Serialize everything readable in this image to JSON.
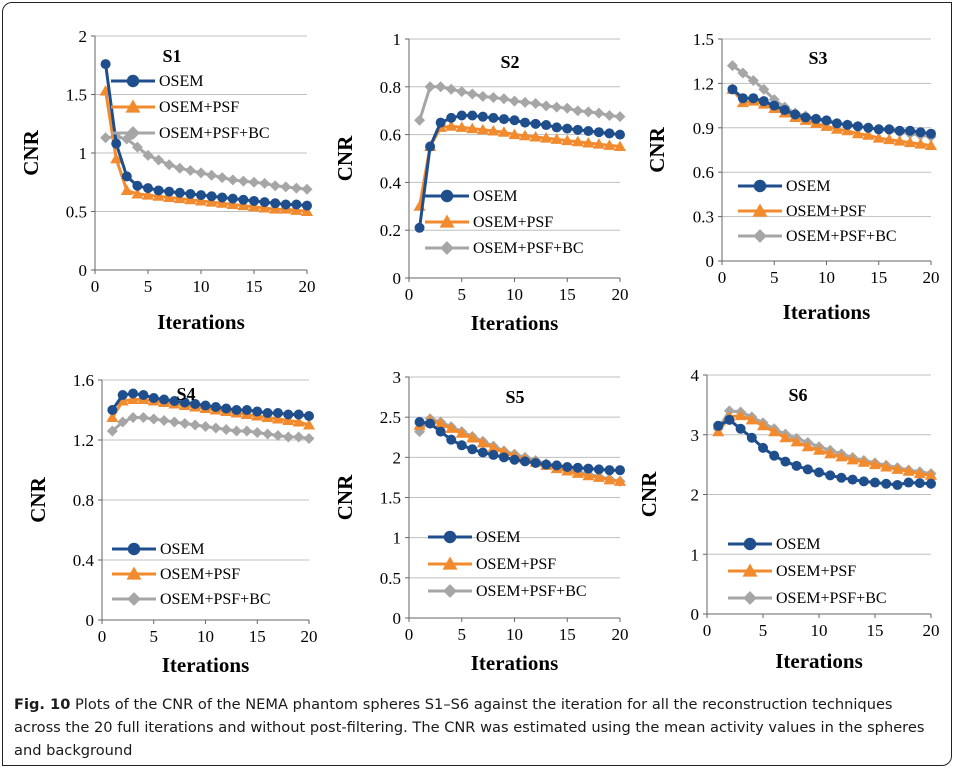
{
  "caption": {
    "label": "Fig. 10",
    "text": "Plots of the CNR of the NEMA phantom spheres S1–S6 against the iteration for all the reconstruction techniques across the 20 full iterations and without post-filtering. The CNR was estimated using the mean activity values in the spheres and background"
  },
  "colors": {
    "OSEM": "#1f4e8c",
    "OSEM+PSF": "#f28a2e",
    "OSEM+PSF+BC": "#a6a6a6"
  },
  "chart_data": [
    {
      "type": "line",
      "title": "S1",
      "xlabel": "Iterations",
      "ylabel": "CNR",
      "xlim": [
        0,
        20
      ],
      "ylim": [
        0,
        2
      ],
      "xticks": [
        0,
        5,
        10,
        15,
        20
      ],
      "yticks": [
        "0",
        "0.5",
        "1",
        "1.5",
        "2"
      ],
      "grid": true,
      "legend_position": "top-right",
      "x": [
        1,
        2,
        3,
        4,
        5,
        6,
        7,
        8,
        9,
        10,
        11,
        12,
        13,
        14,
        15,
        16,
        17,
        18,
        19,
        20
      ],
      "series": [
        {
          "name": "OSEM",
          "marker": "circle",
          "values": [
            1.76,
            1.08,
            0.8,
            0.72,
            0.7,
            0.68,
            0.67,
            0.66,
            0.65,
            0.64,
            0.63,
            0.62,
            0.61,
            0.6,
            0.59,
            0.58,
            0.57,
            0.56,
            0.56,
            0.55
          ]
        },
        {
          "name": "OSEM+PSF",
          "marker": "triangle",
          "values": [
            1.53,
            0.95,
            0.68,
            0.65,
            0.64,
            0.63,
            0.62,
            0.61,
            0.6,
            0.59,
            0.58,
            0.57,
            0.56,
            0.55,
            0.54,
            0.53,
            0.52,
            0.52,
            0.51,
            0.5
          ]
        },
        {
          "name": "OSEM+PSF+BC",
          "marker": "diamond",
          "values": [
            1.13,
            1.14,
            1.12,
            1.05,
            0.98,
            0.94,
            0.9,
            0.87,
            0.85,
            0.83,
            0.81,
            0.79,
            0.77,
            0.76,
            0.75,
            0.74,
            0.72,
            0.71,
            0.7,
            0.69
          ]
        }
      ]
    },
    {
      "type": "line",
      "title": "S2",
      "xlabel": "Iterations",
      "ylabel": "CNR",
      "xlim": [
        0,
        20
      ],
      "ylim": [
        0,
        1
      ],
      "xticks": [
        0,
        5,
        10,
        15,
        20
      ],
      "yticks": [
        "0",
        "0.2",
        "0.4",
        "0.6",
        "0.8",
        "1"
      ],
      "grid": true,
      "legend_position": "bottom-right",
      "x": [
        1,
        2,
        3,
        4,
        5,
        6,
        7,
        8,
        9,
        10,
        11,
        12,
        13,
        14,
        15,
        16,
        17,
        18,
        19,
        20
      ],
      "series": [
        {
          "name": "OSEM",
          "marker": "circle",
          "values": [
            0.21,
            0.55,
            0.65,
            0.67,
            0.68,
            0.68,
            0.675,
            0.67,
            0.665,
            0.66,
            0.65,
            0.645,
            0.64,
            0.63,
            0.625,
            0.62,
            0.615,
            0.61,
            0.605,
            0.6
          ]
        },
        {
          "name": "OSEM+PSF",
          "marker": "triangle",
          "values": [
            0.3,
            0.55,
            0.63,
            0.635,
            0.63,
            0.625,
            0.62,
            0.615,
            0.61,
            0.6,
            0.595,
            0.59,
            0.585,
            0.58,
            0.575,
            0.57,
            0.565,
            0.56,
            0.555,
            0.55
          ]
        },
        {
          "name": "OSEM+PSF+BC",
          "marker": "diamond",
          "values": [
            0.66,
            0.8,
            0.8,
            0.79,
            0.78,
            0.77,
            0.76,
            0.755,
            0.75,
            0.74,
            0.735,
            0.73,
            0.72,
            0.715,
            0.71,
            0.7,
            0.695,
            0.69,
            0.68,
            0.675
          ]
        }
      ]
    },
    {
      "type": "line",
      "title": "S3",
      "xlabel": "Iterations",
      "ylabel": "CNR",
      "xlim": [
        0,
        20
      ],
      "ylim": [
        0,
        1.5
      ],
      "xticks": [
        0,
        5,
        10,
        15,
        20
      ],
      "yticks": [
        "0",
        "0.3",
        "0.6",
        "0.9",
        "1.2",
        "1.5"
      ],
      "grid": true,
      "legend_position": "bottom-right",
      "x": [
        1,
        2,
        3,
        4,
        5,
        6,
        7,
        8,
        9,
        10,
        11,
        12,
        13,
        14,
        15,
        16,
        17,
        18,
        19,
        20
      ],
      "series": [
        {
          "name": "OSEM",
          "marker": "circle",
          "values": [
            1.16,
            1.1,
            1.1,
            1.08,
            1.05,
            1.02,
            0.99,
            0.97,
            0.96,
            0.95,
            0.93,
            0.92,
            0.91,
            0.9,
            0.89,
            0.89,
            0.88,
            0.88,
            0.87,
            0.86
          ]
        },
        {
          "name": "OSEM+PSF",
          "marker": "triangle",
          "values": [
            1.16,
            1.07,
            1.08,
            1.06,
            1.03,
            1.0,
            0.97,
            0.95,
            0.93,
            0.91,
            0.89,
            0.88,
            0.86,
            0.85,
            0.83,
            0.82,
            0.81,
            0.8,
            0.79,
            0.78
          ]
        },
        {
          "name": "OSEM+PSF+BC",
          "marker": "diamond",
          "values": [
            1.32,
            1.27,
            1.22,
            1.16,
            1.09,
            1.04,
            1.0,
            0.98,
            0.96,
            0.94,
            0.93,
            0.92,
            0.91,
            0.9,
            0.89,
            0.88,
            0.87,
            0.86,
            0.85,
            0.84
          ]
        }
      ]
    },
    {
      "type": "line",
      "title": "S4",
      "xlabel": "Iterations",
      "ylabel": "CNR",
      "xlim": [
        0,
        20
      ],
      "ylim": [
        0,
        1.6
      ],
      "xticks": [
        0,
        5,
        10,
        15,
        20
      ],
      "yticks": [
        "0",
        "0.4",
        "0.8",
        "1.2",
        "1.6"
      ],
      "grid": true,
      "legend_position": "bottom-right",
      "x": [
        1,
        2,
        3,
        4,
        5,
        6,
        7,
        8,
        9,
        10,
        11,
        12,
        13,
        14,
        15,
        16,
        17,
        18,
        19,
        20
      ],
      "series": [
        {
          "name": "OSEM",
          "marker": "circle",
          "values": [
            1.4,
            1.5,
            1.51,
            1.5,
            1.48,
            1.47,
            1.46,
            1.45,
            1.44,
            1.43,
            1.42,
            1.41,
            1.4,
            1.4,
            1.39,
            1.38,
            1.38,
            1.37,
            1.37,
            1.36
          ]
        },
        {
          "name": "OSEM+PSF",
          "marker": "triangle",
          "values": [
            1.35,
            1.46,
            1.47,
            1.47,
            1.46,
            1.45,
            1.44,
            1.43,
            1.42,
            1.41,
            1.4,
            1.39,
            1.38,
            1.37,
            1.36,
            1.35,
            1.34,
            1.33,
            1.32,
            1.3
          ]
        },
        {
          "name": "OSEM+PSF+BC",
          "marker": "diamond",
          "values": [
            1.26,
            1.32,
            1.35,
            1.35,
            1.34,
            1.33,
            1.32,
            1.31,
            1.3,
            1.29,
            1.28,
            1.27,
            1.26,
            1.26,
            1.25,
            1.24,
            1.23,
            1.22,
            1.22,
            1.21
          ]
        }
      ]
    },
    {
      "type": "line",
      "title": "S5",
      "xlabel": "Iterations",
      "ylabel": "CNR",
      "xlim": [
        0,
        20
      ],
      "ylim": [
        0,
        3
      ],
      "xticks": [
        0,
        5,
        10,
        15,
        20
      ],
      "yticks": [
        "0",
        "0.5",
        "1",
        "1.5",
        "2",
        "2.5",
        "3"
      ],
      "grid": true,
      "legend_position": "bottom-right",
      "x": [
        1,
        2,
        3,
        4,
        5,
        6,
        7,
        8,
        9,
        10,
        11,
        12,
        13,
        14,
        15,
        16,
        17,
        18,
        19,
        20
      ],
      "series": [
        {
          "name": "OSEM",
          "marker": "circle",
          "values": [
            2.44,
            2.42,
            2.32,
            2.22,
            2.15,
            2.1,
            2.06,
            2.03,
            2.0,
            1.97,
            1.95,
            1.93,
            1.91,
            1.9,
            1.88,
            1.87,
            1.86,
            1.85,
            1.84,
            1.84
          ]
        },
        {
          "name": "OSEM+PSF",
          "marker": "triangle",
          "values": [
            2.4,
            2.46,
            2.42,
            2.36,
            2.3,
            2.24,
            2.18,
            2.12,
            2.07,
            2.02,
            1.98,
            1.94,
            1.9,
            1.86,
            1.83,
            1.8,
            1.77,
            1.75,
            1.72,
            1.7
          ]
        },
        {
          "name": "OSEM+PSF+BC",
          "marker": "diamond",
          "values": [
            2.32,
            2.48,
            2.44,
            2.38,
            2.32,
            2.26,
            2.2,
            2.14,
            2.08,
            2.04,
            2.0,
            1.96,
            1.92,
            1.88,
            1.85,
            1.82,
            1.79,
            1.76,
            1.73,
            1.7
          ]
        }
      ]
    },
    {
      "type": "line",
      "title": "S6",
      "xlabel": "Iterations",
      "ylabel": "CNR",
      "xlim": [
        0,
        20
      ],
      "ylim": [
        0,
        4
      ],
      "xticks": [
        0,
        5,
        10,
        15,
        20
      ],
      "yticks": [
        "0",
        "1",
        "2",
        "3",
        "4"
      ],
      "grid": true,
      "legend_position": "bottom-right",
      "x": [
        1,
        2,
        3,
        4,
        5,
        6,
        7,
        8,
        9,
        10,
        11,
        12,
        13,
        14,
        15,
        16,
        17,
        18,
        19,
        20
      ],
      "series": [
        {
          "name": "OSEM",
          "marker": "circle",
          "values": [
            3.15,
            3.25,
            3.1,
            2.95,
            2.78,
            2.65,
            2.55,
            2.48,
            2.42,
            2.37,
            2.32,
            2.28,
            2.25,
            2.22,
            2.2,
            2.18,
            2.16,
            2.2,
            2.19,
            2.18
          ]
        },
        {
          "name": "OSEM+PSF",
          "marker": "triangle",
          "values": [
            3.05,
            3.3,
            3.32,
            3.25,
            3.15,
            3.05,
            2.95,
            2.88,
            2.8,
            2.74,
            2.68,
            2.63,
            2.58,
            2.54,
            2.5,
            2.46,
            2.42,
            2.39,
            2.35,
            2.32
          ]
        },
        {
          "name": "OSEM+PSF+BC",
          "marker": "diamond",
          "values": [
            3.1,
            3.4,
            3.38,
            3.3,
            3.2,
            3.1,
            3.01,
            2.94,
            2.87,
            2.8,
            2.74,
            2.68,
            2.62,
            2.57,
            2.53,
            2.49,
            2.45,
            2.41,
            2.38,
            2.35
          ]
        }
      ]
    }
  ]
}
